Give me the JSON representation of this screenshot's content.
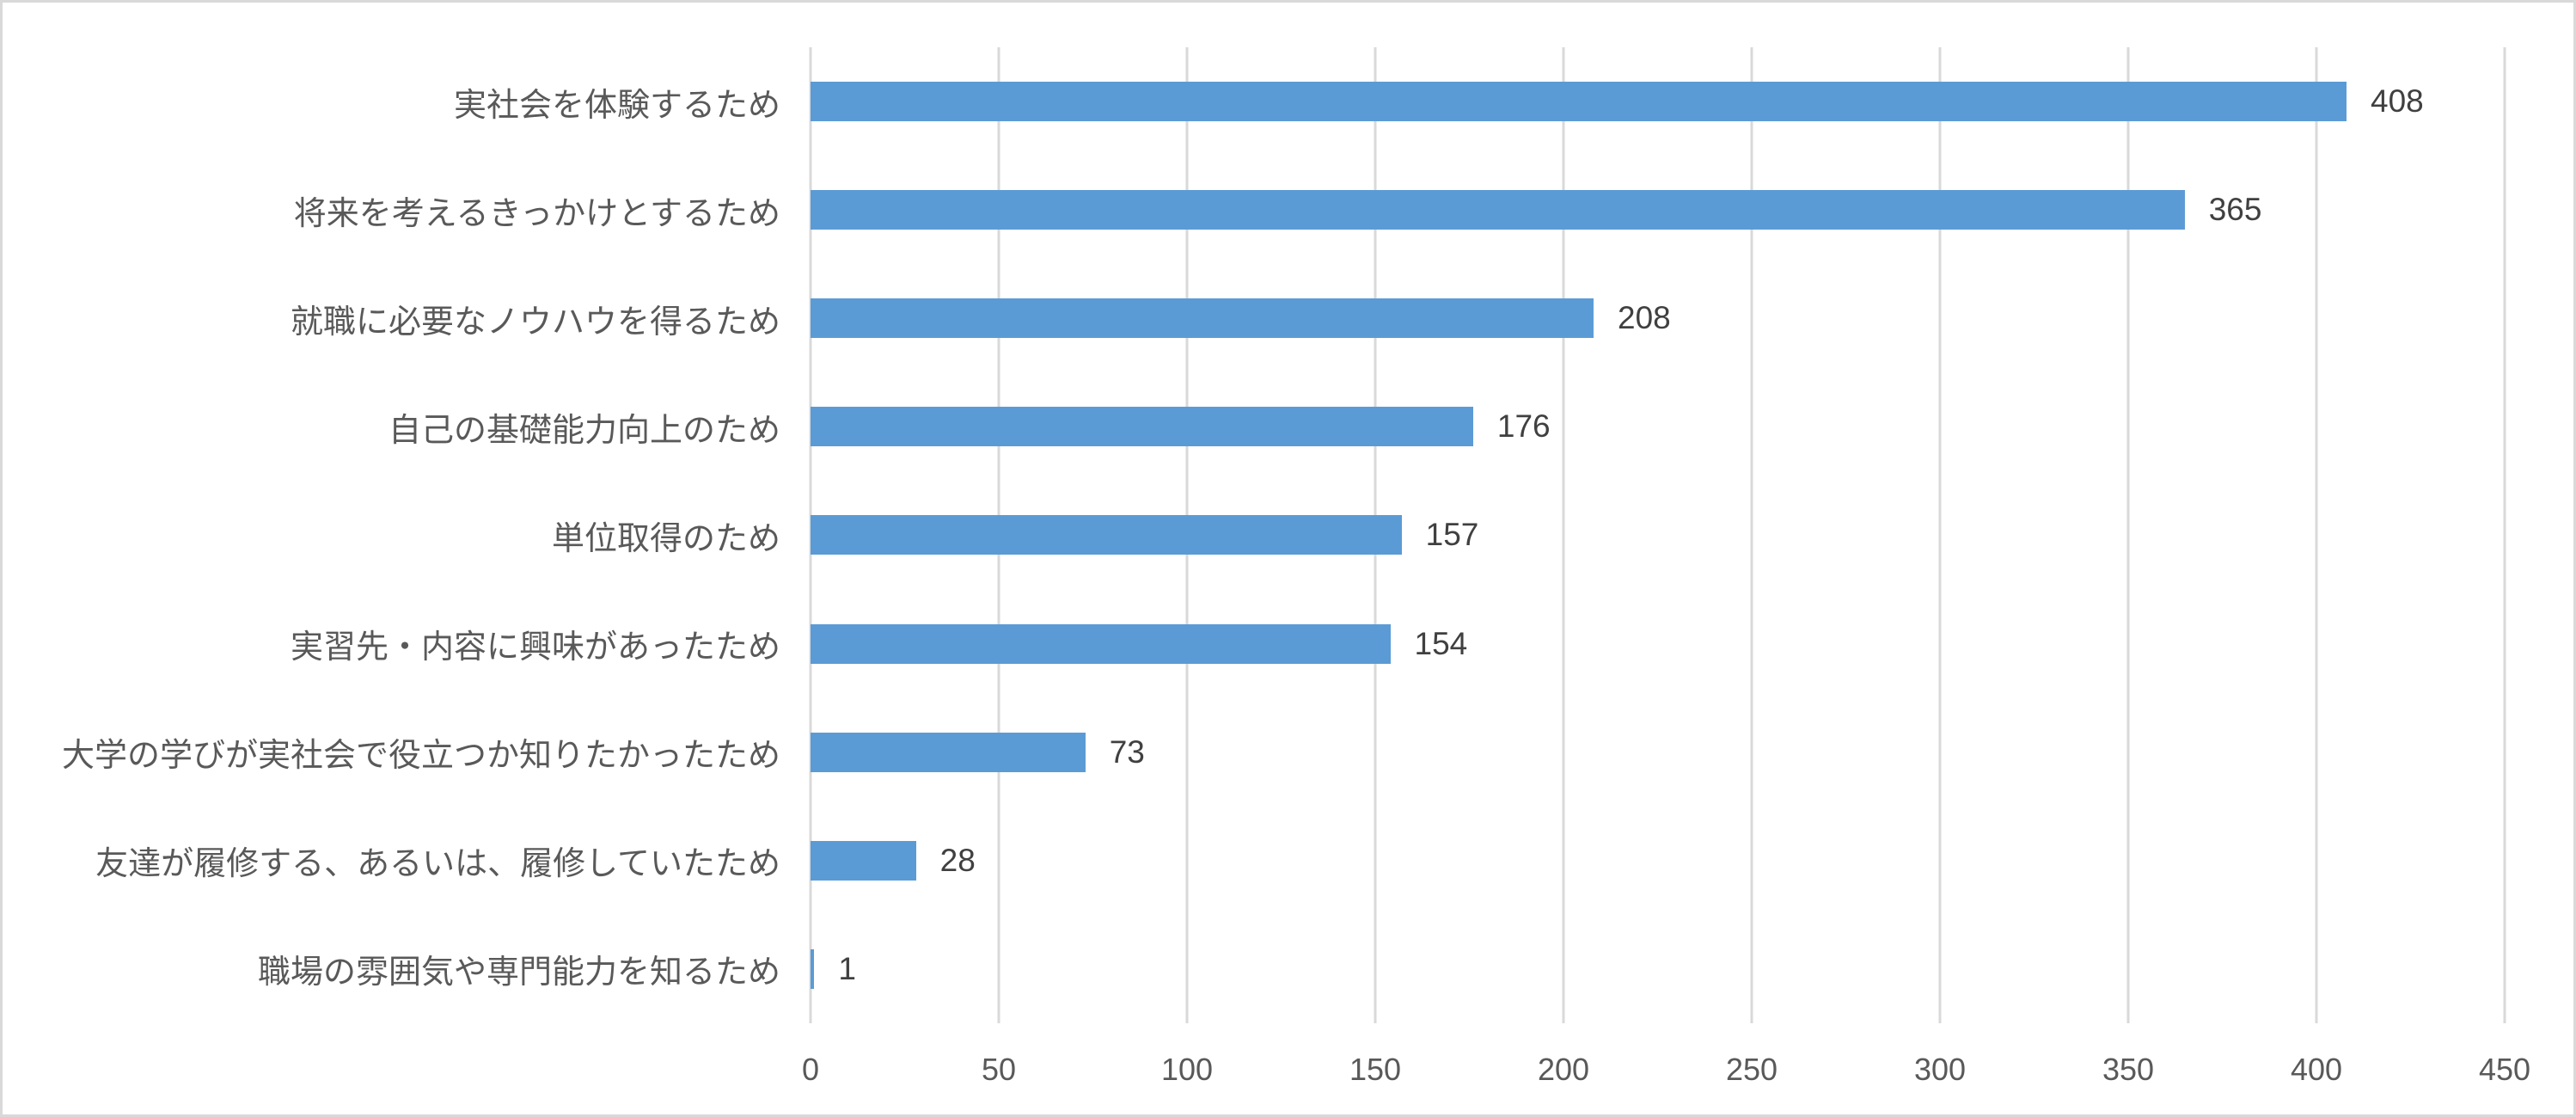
{
  "chart_data": {
    "type": "bar",
    "orientation": "horizontal",
    "title": "",
    "xlabel": "",
    "ylabel": "",
    "categories": [
      "実社会を体験するため",
      "将来を考えるきっかけとするため",
      "就職に必要なノウハウを得るため",
      "自己の基礎能力向上のため",
      "単位取得のため",
      "実習先・内容に興味があったため",
      "大学の学びが実社会で役立つか知りたかったため",
      "友達が履修する、あるいは、履修していたため",
      "職場の雰囲気や専門能力を知るため"
    ],
    "values": [
      408,
      365,
      208,
      176,
      157,
      154,
      73,
      28,
      1
    ],
    "data_labels": [
      "408",
      "365",
      "208",
      "176",
      "157",
      "154",
      "73",
      "28",
      "1"
    ],
    "xlim": [
      0,
      450
    ],
    "x_ticks": [
      "0",
      "50",
      "100",
      "150",
      "200",
      "250",
      "300",
      "350",
      "400",
      "450"
    ],
    "grid": "vertical",
    "legend": "none",
    "colors": {
      "bar": "#5B9BD5",
      "gridline": "#D9D9D9",
      "chart_border": "#D9D9D9",
      "category_text": "#595959",
      "tick_text": "#595959",
      "data_label_text": "#404040",
      "background": "#FFFFFF"
    }
  }
}
